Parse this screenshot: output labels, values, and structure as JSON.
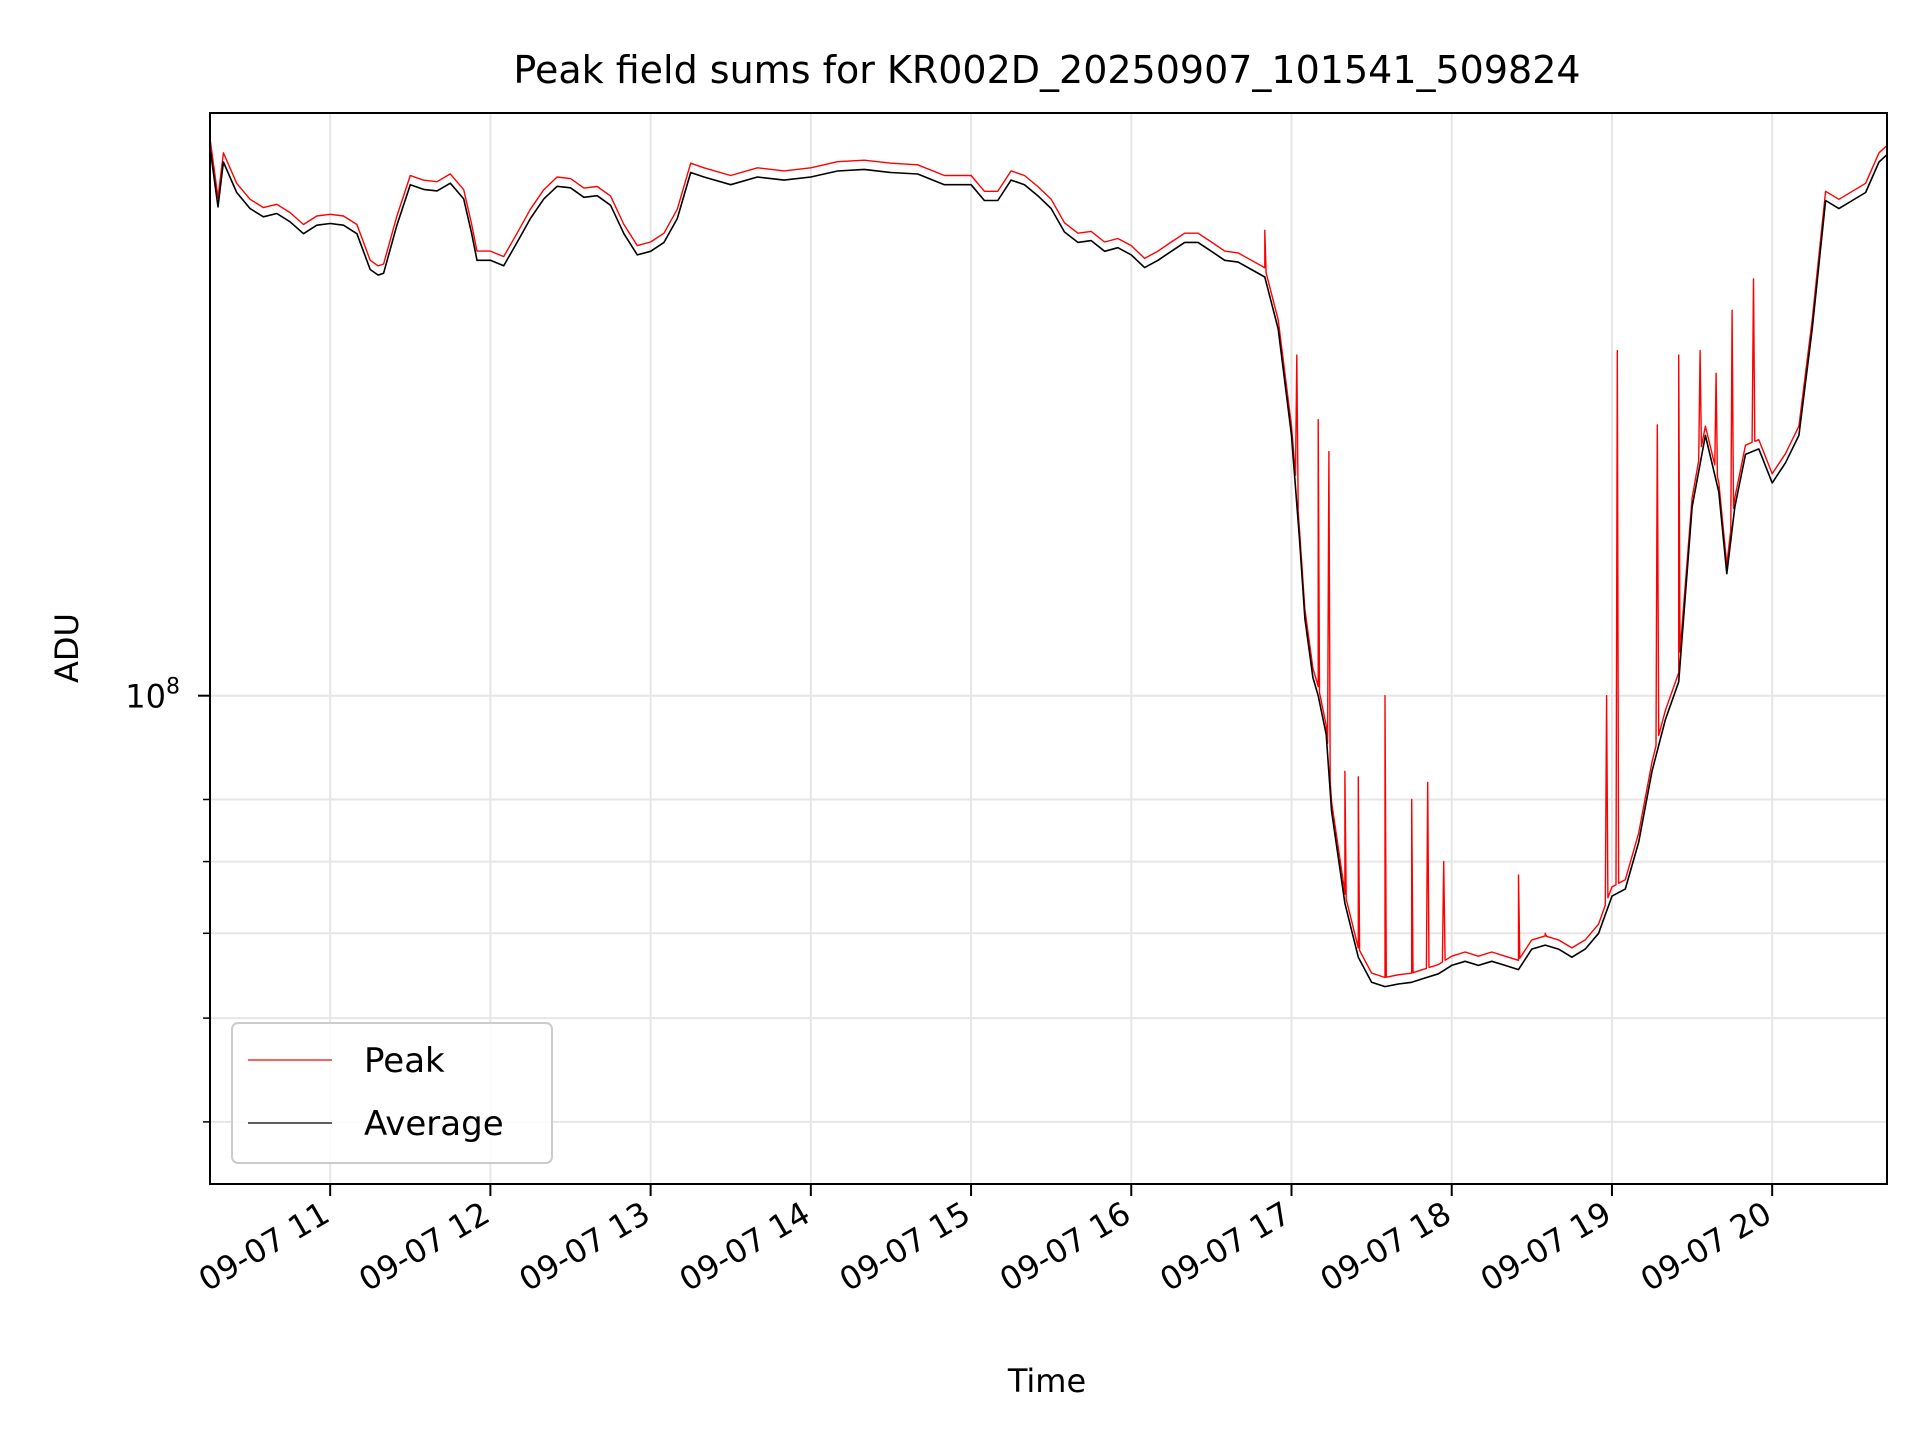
{
  "chart_data": {
    "type": "line",
    "title": "Peak field sums for KR002D_20250907_101541_509824",
    "xlabel": "Time",
    "ylabel": "ADU",
    "y_scale": "log",
    "y_major_tick": {
      "value": 100000000,
      "base": "10",
      "exponent": "8"
    },
    "y_minor_ticks": [
      40000000,
      50000000,
      60000000,
      70000000,
      80000000
    ],
    "ylim": [
      35000000,
      350000000
    ],
    "xlim": [
      "2025-09-07 10:15",
      "2025-09-07 20:43"
    ],
    "x_ticks": [
      {
        "label": "09-07 11",
        "time": "2025-09-07 11:00"
      },
      {
        "label": "09-07 12",
        "time": "2025-09-07 12:00"
      },
      {
        "label": "09-07 13",
        "time": "2025-09-07 13:00"
      },
      {
        "label": "09-07 14",
        "time": "2025-09-07 14:00"
      },
      {
        "label": "09-07 15",
        "time": "2025-09-07 15:00"
      },
      {
        "label": "09-07 16",
        "time": "2025-09-07 16:00"
      },
      {
        "label": "09-07 17",
        "time": "2025-09-07 17:00"
      },
      {
        "label": "09-07 18",
        "time": "2025-09-07 18:00"
      },
      {
        "label": "09-07 19",
        "time": "2025-09-07 19:00"
      },
      {
        "label": "09-07 20",
        "time": "2025-09-07 20:00"
      }
    ],
    "grid": true,
    "legend_position": "lower-left",
    "series": [
      {
        "name": "Peak",
        "color": "#ff0000",
        "x": [
          "2025-09-07 16:50",
          "2025-09-07 17:02",
          "2025-09-07 17:10",
          "2025-09-07 17:14",
          "2025-09-07 17:20",
          "2025-09-07 17:25",
          "2025-09-07 17:35",
          "2025-09-07 17:45",
          "2025-09-07 17:51",
          "2025-09-07 17:57",
          "2025-09-07 18:25",
          "2025-09-07 18:35",
          "2025-09-07 18:58",
          "2025-09-07 19:02",
          "2025-09-07 19:17",
          "2025-09-07 19:25",
          "2025-09-07 19:33",
          "2025-09-07 19:39",
          "2025-09-07 19:45",
          "2025-09-07 19:53"
        ],
        "values": [
          272000000,
          208000000,
          181000000,
          169000000,
          85000000,
          84000000,
          100000000,
          80000000,
          83000000,
          70000000,
          68000000,
          60000000,
          100000000,
          210000000,
          179000000,
          208000000,
          210000000,
          200000000,
          229000000,
          245000000
        ]
      },
      {
        "name": "Average",
        "color": "#000000",
        "x": [
          "2025-09-07 10:15",
          "2025-09-07 10:18",
          "2025-09-07 10:20",
          "2025-09-07 10:25",
          "2025-09-07 10:30",
          "2025-09-07 10:35",
          "2025-09-07 10:40",
          "2025-09-07 10:45",
          "2025-09-07 10:50",
          "2025-09-07 10:55",
          "2025-09-07 11:00",
          "2025-09-07 11:05",
          "2025-09-07 11:10",
          "2025-09-07 11:15",
          "2025-09-07 11:18",
          "2025-09-07 11:20",
          "2025-09-07 11:25",
          "2025-09-07 11:30",
          "2025-09-07 11:35",
          "2025-09-07 11:40",
          "2025-09-07 11:45",
          "2025-09-07 11:50",
          "2025-09-07 11:53",
          "2025-09-07 11:55",
          "2025-09-07 12:00",
          "2025-09-07 12:05",
          "2025-09-07 12:10",
          "2025-09-07 12:15",
          "2025-09-07 12:20",
          "2025-09-07 12:25",
          "2025-09-07 12:30",
          "2025-09-07 12:35",
          "2025-09-07 12:40",
          "2025-09-07 12:45",
          "2025-09-07 12:50",
          "2025-09-07 12:55",
          "2025-09-07 13:00",
          "2025-09-07 13:05",
          "2025-09-07 13:10",
          "2025-09-07 13:15",
          "2025-09-07 13:20",
          "2025-09-07 13:30",
          "2025-09-07 13:40",
          "2025-09-07 13:50",
          "2025-09-07 14:00",
          "2025-09-07 14:10",
          "2025-09-07 14:20",
          "2025-09-07 14:30",
          "2025-09-07 14:40",
          "2025-09-07 14:50",
          "2025-09-07 15:00",
          "2025-09-07 15:05",
          "2025-09-07 15:10",
          "2025-09-07 15:15",
          "2025-09-07 15:20",
          "2025-09-07 15:25",
          "2025-09-07 15:30",
          "2025-09-07 15:35",
          "2025-09-07 15:40",
          "2025-09-07 15:45",
          "2025-09-07 15:50",
          "2025-09-07 15:55",
          "2025-09-07 16:00",
          "2025-09-07 16:05",
          "2025-09-07 16:10",
          "2025-09-07 16:15",
          "2025-09-07 16:20",
          "2025-09-07 16:25",
          "2025-09-07 16:30",
          "2025-09-07 16:35",
          "2025-09-07 16:40",
          "2025-09-07 16:45",
          "2025-09-07 16:50",
          "2025-09-07 16:55",
          "2025-09-07 17:00",
          "2025-09-07 17:03",
          "2025-09-07 17:05",
          "2025-09-07 17:08",
          "2025-09-07 17:10",
          "2025-09-07 17:13",
          "2025-09-07 17:15",
          "2025-09-07 17:20",
          "2025-09-07 17:25",
          "2025-09-07 17:30",
          "2025-09-07 17:35",
          "2025-09-07 17:40",
          "2025-09-07 17:45",
          "2025-09-07 17:50",
          "2025-09-07 17:55",
          "2025-09-07 18:00",
          "2025-09-07 18:05",
          "2025-09-07 18:10",
          "2025-09-07 18:15",
          "2025-09-07 18:20",
          "2025-09-07 18:25",
          "2025-09-07 18:30",
          "2025-09-07 18:35",
          "2025-09-07 18:40",
          "2025-09-07 18:45",
          "2025-09-07 18:50",
          "2025-09-07 18:55",
          "2025-09-07 19:00",
          "2025-09-07 19:05",
          "2025-09-07 19:10",
          "2025-09-07 19:15",
          "2025-09-07 19:20",
          "2025-09-07 19:25",
          "2025-09-07 19:30",
          "2025-09-07 19:35",
          "2025-09-07 19:40",
          "2025-09-07 19:43",
          "2025-09-07 19:46",
          "2025-09-07 19:50",
          "2025-09-07 19:55",
          "2025-09-07 20:00",
          "2025-09-07 20:05",
          "2025-09-07 20:10",
          "2025-09-07 20:15",
          "2025-09-07 20:20",
          "2025-09-07 20:25",
          "2025-09-07 20:30",
          "2025-09-07 20:35",
          "2025-09-07 20:40",
          "2025-09-07 20:43"
        ],
        "values": [
          325000000,
          286000000,
          315000000,
          295000000,
          285000000,
          280000000,
          282000000,
          277000000,
          270000000,
          275000000,
          276000000,
          275000000,
          270000000,
          250000000,
          247000000,
          248000000,
          275000000,
          300000000,
          297000000,
          296000000,
          301000000,
          291000000,
          270000000,
          255000000,
          255000000,
          252000000,
          265000000,
          279000000,
          291000000,
          299000000,
          298000000,
          292000000,
          293000000,
          287000000,
          270000000,
          258000000,
          260000000,
          265000000,
          279000000,
          308000000,
          305000000,
          300000000,
          305000000,
          303000000,
          305000000,
          309000000,
          310000000,
          308000000,
          307000000,
          300000000,
          300000000,
          290000000,
          290000000,
          303000000,
          300000000,
          293000000,
          285000000,
          271000000,
          265000000,
          266000000,
          260000000,
          262000000,
          258000000,
          251000000,
          255000000,
          260000000,
          265000000,
          265000000,
          260000000,
          255000000,
          254000000,
          250000000,
          246000000,
          220000000,
          175000000,
          140000000,
          118000000,
          104000000,
          100000000,
          92000000,
          78000000,
          64000000,
          57000000,
          54000000,
          53500000,
          53800000,
          54000000,
          54500000,
          55000000,
          56000000,
          56500000,
          56000000,
          56500000,
          56000000,
          55500000,
          58000000,
          58500000,
          58000000,
          57000000,
          58000000,
          60000000,
          65000000,
          66000000,
          73000000,
          85000000,
          95000000,
          103000000,
          150000000,
          175000000,
          155000000,
          130000000,
          150000000,
          168000000,
          170000000,
          158000000,
          165000000,
          175000000,
          220000000,
          290000000,
          285000000,
          290000000,
          295000000,
          315000000,
          320000000
        ]
      }
    ]
  }
}
